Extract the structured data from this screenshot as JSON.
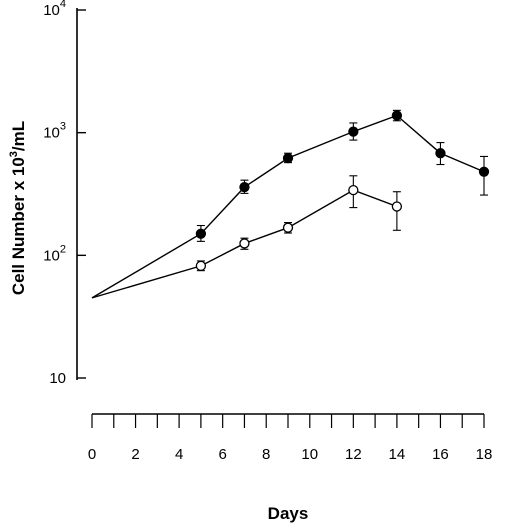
{
  "chart_data": {
    "type": "line",
    "xlabel": "Days",
    "ylabel": "Cell Number x 10",
    "ylabel_sup": "3",
    "ylabel_suffix": "/mL",
    "xlim": [
      0,
      18
    ],
    "ylim": [
      10,
      10000
    ],
    "yscale": "log",
    "x_ticks": [
      0,
      2,
      4,
      6,
      8,
      10,
      12,
      14,
      16,
      18
    ],
    "y_ticks": [
      {
        "value": 10,
        "base": "10",
        "exp": ""
      },
      {
        "value": 100,
        "base": "10",
        "exp": "2"
      },
      {
        "value": 1000,
        "base": "10",
        "exp": "3"
      },
      {
        "value": 10000,
        "base": "10",
        "exp": "4"
      }
    ],
    "grid": false,
    "legend": "none",
    "series": [
      {
        "marker": "filled-circle",
        "x": [
          0,
          5,
          7,
          9,
          12,
          14,
          16,
          18
        ],
        "y": [
          45,
          150,
          360,
          620,
          1020,
          1380,
          680,
          480
        ],
        "err_low": [
          null,
          130,
          320,
          570,
          870,
          1250,
          550,
          310
        ],
        "err_high": [
          null,
          175,
          410,
          680,
          1200,
          1520,
          830,
          640
        ]
      },
      {
        "marker": "open-circle",
        "x": [
          0,
          5,
          7,
          9,
          12,
          14
        ],
        "y": [
          45,
          82,
          125,
          168,
          340,
          250
        ],
        "err_low": [
          null,
          75,
          112,
          152,
          245,
          160
        ],
        "err_high": [
          null,
          90,
          138,
          185,
          445,
          330
        ]
      }
    ]
  }
}
